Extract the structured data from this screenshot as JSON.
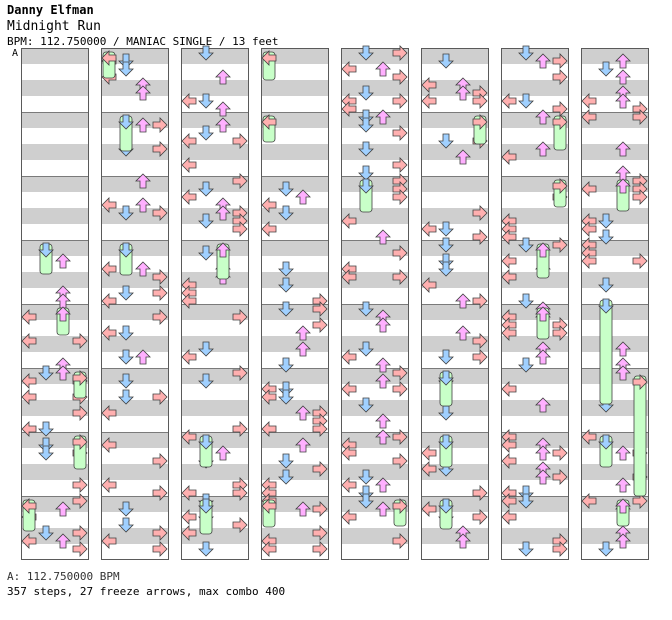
{
  "song": {
    "artist": "Danny Elfman",
    "title": "Midnight Run",
    "info_line": "BPM: 112.750000 / MANIAC SINGLE / 13 feet",
    "section_marker": "A"
  },
  "footer": {
    "bpm_line": "A: 112.750000 BPM",
    "stats_line": "357 steps, 27 freeze arrows, max combo 400"
  },
  "colors": {
    "stripe": "#cfcfcf",
    "left": "#ffb0b0",
    "down": "#a0d0ff",
    "up": "#ffb0ff",
    "right": "#ffb0b0",
    "freeze": "#c8ffc8",
    "outline": "#404040"
  },
  "chart_data": {
    "type": "step-chart",
    "lanes": [
      "left",
      "down",
      "up",
      "right"
    ],
    "columns": 8,
    "measures_per_column": 8,
    "total_steps": 357,
    "freeze_arrows": 27,
    "max_combo": 400
  }
}
